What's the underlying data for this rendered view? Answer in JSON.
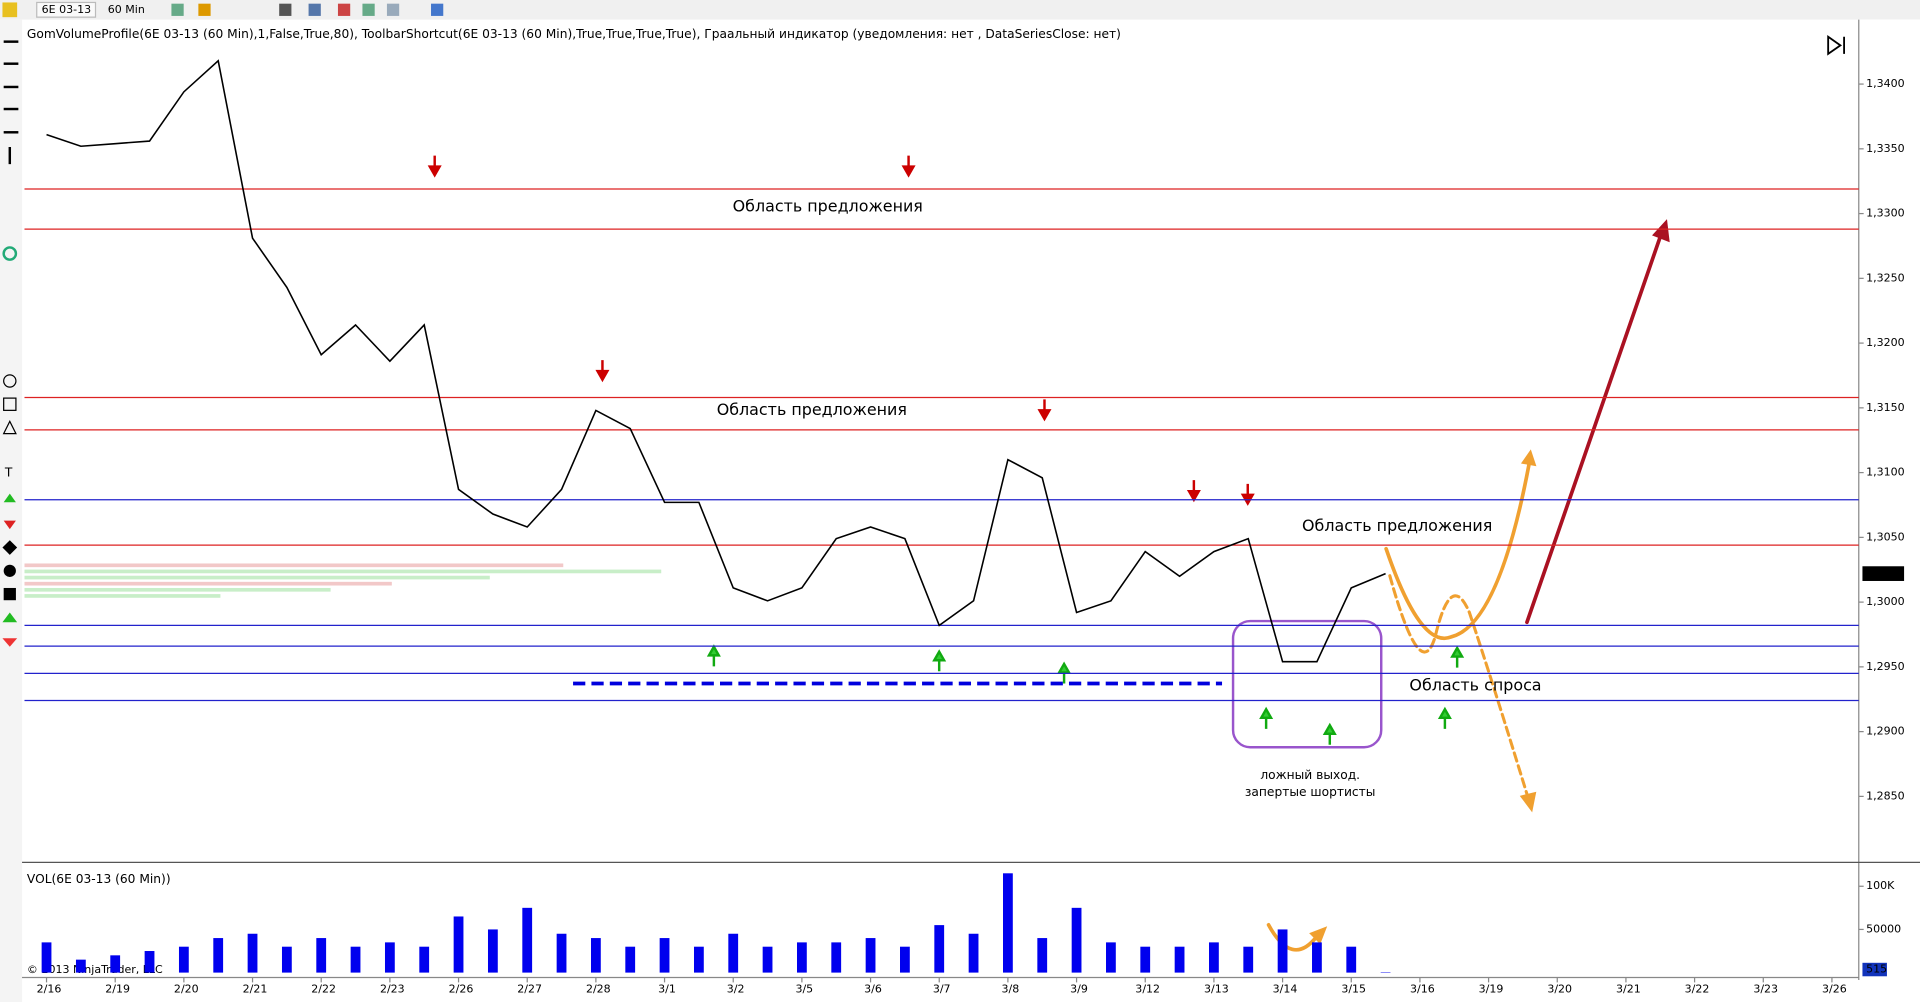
{
  "toolbar": {
    "instrument": "6E 03-13",
    "interval": "60 Min"
  },
  "copyright": "© 2013 NinjaTrader, LLC",
  "chart_data": [
    {
      "type": "line",
      "title": "GomVolumeProfile(6E 03-13 (60 Min),1,False,True,80), ToolbarShortcut(6E 03-13 (60 Min),True,True,True,True), Грaальный индикатор (уведомления: нет , DataSeriesClose: нет)",
      "categories": [
        "2/16",
        null,
        "2/19",
        null,
        "2/20",
        null,
        "2/21",
        null,
        "2/22",
        null,
        "2/23",
        null,
        "2/26",
        null,
        "2/27",
        null,
        "2/28",
        null,
        "3/1",
        null,
        "3/2",
        null,
        "3/5",
        null,
        "3/6",
        null,
        "3/7",
        null,
        "3/8",
        null,
        "3/9",
        null,
        "3/12",
        null,
        "3/13",
        null,
        "3/14",
        null,
        "3/15",
        null,
        "3/16",
        null,
        "3/19",
        null,
        "3/20",
        null,
        "3/21",
        null,
        "3/22",
        null,
        "3/23",
        null,
        "3/26",
        null
      ],
      "series": [
        {
          "color": "#000000",
          "values": [
            1.3361,
            1.3352,
            1.3354,
            1.3356,
            1.3394,
            1.3418,
            1.3281,
            1.3243,
            1.3191,
            1.3214,
            1.3186,
            1.3214,
            1.3087,
            1.3068,
            1.3058,
            1.3087,
            1.3148,
            1.3134,
            1.3077,
            1.3077,
            1.3011,
            1.3001,
            1.3011,
            1.3049,
            1.3058,
            1.3049,
            1.2982,
            1.3001,
            1.311,
            1.3096,
            1.2992,
            1.3001,
            1.3039,
            1.302,
            1.3039,
            1.3049,
            1.2954,
            1.2954,
            1.3011,
            1.3022,
            null,
            null,
            null,
            null,
            null,
            null,
            null,
            null,
            null,
            null,
            null,
            null,
            null,
            null
          ]
        }
      ],
      "ylim": [
        1.28,
        1.3446
      ],
      "yticks": [
        {
          "value": 1.34,
          "label": "1,3400"
        },
        {
          "value": 1.335,
          "label": "1,3350"
        },
        {
          "value": 1.33,
          "label": "1,3300"
        },
        {
          "value": 1.325,
          "label": "1,3250"
        },
        {
          "value": 1.32,
          "label": "1,3200"
        },
        {
          "value": 1.315,
          "label": "1,3150"
        },
        {
          "value": 1.31,
          "label": "1,3100"
        },
        {
          "value": 1.305,
          "label": "1,3050"
        },
        {
          "value": 1.3,
          "label": "1,3000"
        },
        {
          "value": 1.295,
          "label": "1,2950"
        },
        {
          "value": 1.29,
          "label": "1,2900"
        },
        {
          "value": 1.285,
          "label": "1,2850"
        }
      ],
      "last_label": "1,3022",
      "levels": [
        {
          "value": 1.3319,
          "color": "#dd2222"
        },
        {
          "value": 1.3288,
          "color": "#dd2222"
        },
        {
          "value": 1.3158,
          "color": "#dd2222"
        },
        {
          "value": 1.3133,
          "color": "#dd2222"
        },
        {
          "value": 1.3044,
          "color": "#dd2222"
        },
        {
          "value": 1.3079,
          "color": "#2222cc"
        },
        {
          "value": 1.2982,
          "color": "#2222cc"
        },
        {
          "value": 1.2966,
          "color": "#2222cc"
        },
        {
          "value": 1.2945,
          "color": "#2222cc"
        },
        {
          "value": 1.2924,
          "color": "#2222cc"
        }
      ],
      "annotations": [
        "Область предложения",
        "Область предложения",
        "Область предложения",
        "Область спроса",
        "ложный выход.",
        "запертые шортисты"
      ]
    },
    {
      "type": "bar",
      "title": "VOL(6E 03-13 (60 Min))",
      "series": [
        {
          "color": "#0000ee",
          "values": [
            35000,
            15000,
            20000,
            25000,
            30000,
            40000,
            45000,
            30000,
            40000,
            30000,
            35000,
            30000,
            65000,
            50000,
            75000,
            45000,
            40000,
            30000,
            40000,
            30000,
            45000,
            30000,
            35000,
            35000,
            40000,
            30000,
            55000,
            45000,
            115000,
            40000,
            75000,
            35000,
            30000,
            30000,
            35000,
            30000,
            50000,
            35000,
            30000,
            515
          ]
        }
      ],
      "ylim": [
        0,
        122000
      ],
      "yticks": [
        {
          "value": 100000,
          "label": "100K"
        },
        50000
      ],
      "last_label": "515"
    }
  ]
}
